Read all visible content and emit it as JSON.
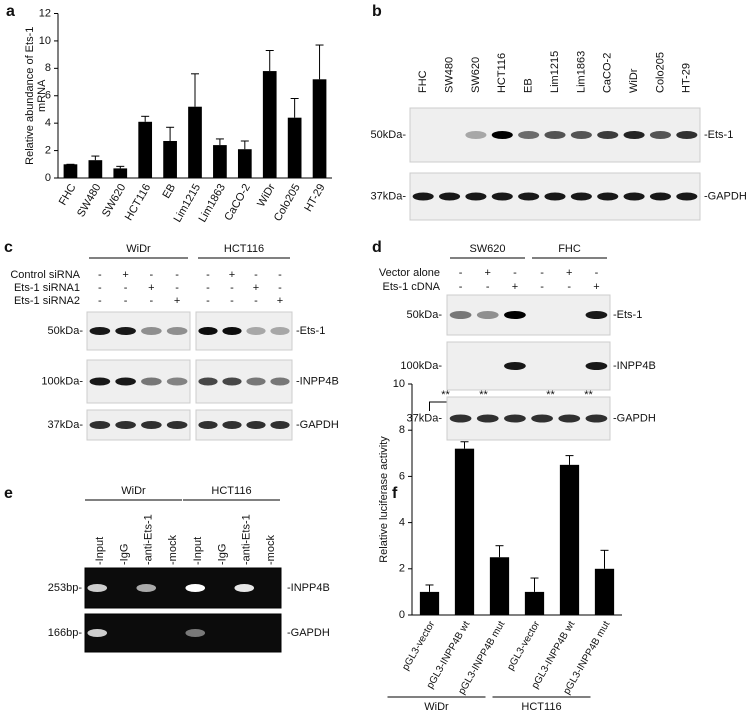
{
  "chart_data": [
    {
      "type": "bar",
      "panel": "a",
      "ylabel": [
        "Relative abundance of Ets-1",
        "mRNA"
      ],
      "categories": [
        "FHC",
        "SW480",
        "SW620",
        "HCT116",
        "EB",
        "Lim1215",
        "Lim1863",
        "CaCO-2",
        "WiDr",
        "Colo205",
        "HT-29"
      ],
      "values": [
        1,
        1.3,
        0.7,
        4.1,
        2.7,
        5.2,
        2.4,
        2.1,
        7.8,
        4.4,
        7.2
      ],
      "errors": [
        0,
        0.3,
        0.15,
        0.4,
        1.0,
        2.4,
        0.45,
        0.6,
        1.5,
        1.4,
        2.5
      ],
      "color": "#000000",
      "ylim": [
        0,
        12
      ],
      "yticks": [
        0,
        2,
        4,
        6,
        8,
        10,
        12
      ]
    },
    {
      "type": "bar",
      "panel": "f",
      "ylabel": "Relative luciferase activity",
      "categories": [
        "pGL3-vector",
        "pGL3-INPP4B wt",
        "pGL3-INPP4B mut",
        "pGL3-vector",
        "pGL3-INPP4B wt",
        "pGL3-INPP4B mut"
      ],
      "values": [
        1,
        7.2,
        2.5,
        1,
        6.5,
        2
      ],
      "errors": [
        0.3,
        0.3,
        0.5,
        0.6,
        0.4,
        0.8
      ],
      "color": "#000000",
      "groups": [
        "WiDr",
        "HCT116"
      ],
      "annotations": [
        "**",
        "**",
        "**",
        "**"
      ],
      "ylim": [
        0,
        10
      ],
      "yticks": [
        0,
        2,
        4,
        6,
        8,
        10
      ]
    }
  ],
  "blots": [
    {
      "panel": "b",
      "lanes": [
        "FHC",
        "SW480",
        "SW620",
        "HCT116",
        "EB",
        "Lim1215",
        "Lim1863",
        "CaCO-2",
        "WiDr",
        "Colo205",
        "HT-29"
      ],
      "rows": [
        {
          "size": "50kDa-",
          "target": "-Ets-1"
        },
        {
          "size": "37kDa-",
          "target": "-GAPDH"
        }
      ]
    },
    {
      "panel": "c",
      "groups": [
        "WiDr",
        "HCT116"
      ],
      "conditions": [
        {
          "name": "Control siRNA",
          "signs": [
            "-",
            "+",
            "-",
            "-",
            "-",
            "+",
            "-",
            "-"
          ]
        },
        {
          "name": "Ets-1 siRNA1",
          "signs": [
            "-",
            "-",
            "+",
            "-",
            "-",
            "-",
            "+",
            "-"
          ]
        },
        {
          "name": "Ets-1 siRNA2",
          "signs": [
            "-",
            "-",
            "-",
            "+",
            "-",
            "-",
            "-",
            "+"
          ]
        }
      ],
      "rows": [
        {
          "size": "50kDa-",
          "target": "-Ets-1"
        },
        {
          "size": "100kDa-",
          "target": "-INPP4B"
        },
        {
          "size": "37kDa-",
          "target": "-GAPDH"
        }
      ]
    },
    {
      "panel": "d",
      "groups": [
        "SW620",
        "FHC"
      ],
      "conditions": [
        {
          "name": "Vector alone",
          "signs": [
            "-",
            "+",
            "-",
            "-",
            "+",
            "-"
          ]
        },
        {
          "name": "Ets-1 cDNA",
          "signs": [
            "-",
            "-",
            "+",
            "-",
            "-",
            "+"
          ]
        }
      ],
      "rows": [
        {
          "size": "50kDa-",
          "target": "-Ets-1"
        },
        {
          "size": "100kDa-",
          "target": "-INPP4B"
        },
        {
          "size": "37kDa-",
          "target": "-GAPDH"
        }
      ]
    },
    {
      "panel": "e",
      "groups": [
        {
          "name": "WiDr",
          "lanes": [
            "-Input",
            "-IgG",
            "-anti-Ets-1",
            "-mock"
          ]
        },
        {
          "name": "HCT116",
          "lanes": [
            "-Input",
            "-IgG",
            "-anti-Ets-1",
            "-mock"
          ]
        }
      ],
      "rows": [
        {
          "size": "253bp-",
          "target": "-INPP4B"
        },
        {
          "size": "166bp-",
          "target": "-GAPDH"
        }
      ]
    }
  ]
}
